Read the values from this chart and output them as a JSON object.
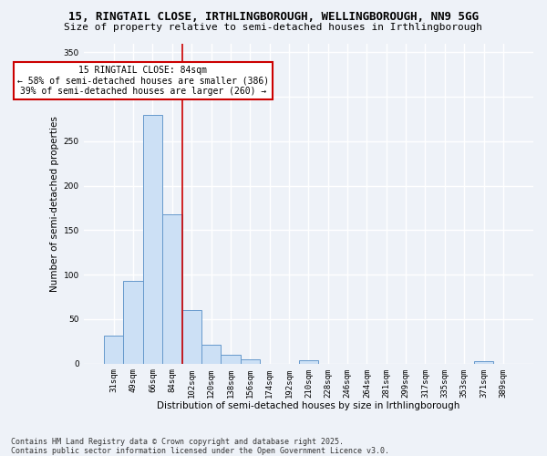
{
  "title_line1": "15, RINGTAIL CLOSE, IRTHLINGBOROUGH, WELLINGBOROUGH, NN9 5GG",
  "title_line2": "Size of property relative to semi-detached houses in Irthlingborough",
  "xlabel": "Distribution of semi-detached houses by size in Irthlingborough",
  "ylabel": "Number of semi-detached properties",
  "categories": [
    "31sqm",
    "49sqm",
    "66sqm",
    "84sqm",
    "102sqm",
    "120sqm",
    "138sqm",
    "156sqm",
    "174sqm",
    "192sqm",
    "210sqm",
    "228sqm",
    "246sqm",
    "264sqm",
    "281sqm",
    "299sqm",
    "317sqm",
    "335sqm",
    "353sqm",
    "371sqm",
    "389sqm"
  ],
  "values": [
    32,
    93,
    280,
    168,
    60,
    21,
    10,
    5,
    0,
    0,
    4,
    0,
    0,
    0,
    0,
    0,
    0,
    0,
    0,
    3,
    0
  ],
  "bar_color": "#cce0f5",
  "bar_edge_color": "#6699cc",
  "highlight_index": 3,
  "property_sqm": 84,
  "pct_smaller": 58,
  "n_smaller": 386,
  "pct_larger": 39,
  "n_larger": 260,
  "annotation_text": "15 RINGTAIL CLOSE: 84sqm\n← 58% of semi-detached houses are smaller (386)\n39% of semi-detached houses are larger (260) →",
  "ylim": [
    0,
    360
  ],
  "yticks": [
    0,
    50,
    100,
    150,
    200,
    250,
    300,
    350
  ],
  "footnote": "Contains HM Land Registry data © Crown copyright and database right 2025.\nContains public sector information licensed under the Open Government Licence v3.0.",
  "bg_color": "#eef2f8",
  "grid_color": "#ffffff",
  "annotation_box_color": "#ffffff",
  "annotation_box_edge": "#cc0000",
  "vline_color": "#cc0000",
  "title_fontsize": 9,
  "subtitle_fontsize": 8,
  "axis_label_fontsize": 7.5,
  "tick_fontsize": 6.5,
  "annotation_fontsize": 7,
  "footnote_fontsize": 6
}
